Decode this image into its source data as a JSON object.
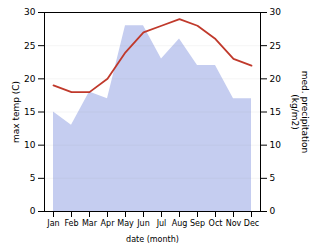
{
  "chart_data": {
    "type": "line",
    "xlabel": "date (month)",
    "ylabel": "max temp (C)",
    "y2label": "med. precipitation\n(kg/m2)",
    "categories": [
      "Jan",
      "Feb",
      "Mar",
      "Apr",
      "May",
      "Jun",
      "Jul",
      "Aug",
      "Sep",
      "Oct",
      "Nov",
      "Dec"
    ],
    "series": [
      {
        "type": "line",
        "color": "#c0392b",
        "values": [
          19,
          18,
          18,
          20,
          24,
          27,
          28,
          29,
          28,
          26,
          23,
          22
        ]
      },
      {
        "type": "area",
        "axis": "y2",
        "color": "#c5cdf0",
        "values": [
          15,
          13,
          18,
          17,
          28,
          28,
          23,
          26,
          22,
          22,
          17,
          17
        ]
      }
    ],
    "ylim": [
      0,
      30
    ],
    "yticks": [
      0,
      5,
      10,
      15,
      20,
      25,
      30
    ],
    "y2lim": [
      0,
      30
    ],
    "y2ticks": [
      0,
      5,
      10,
      15,
      20,
      25,
      30
    ],
    "grid": true
  }
}
